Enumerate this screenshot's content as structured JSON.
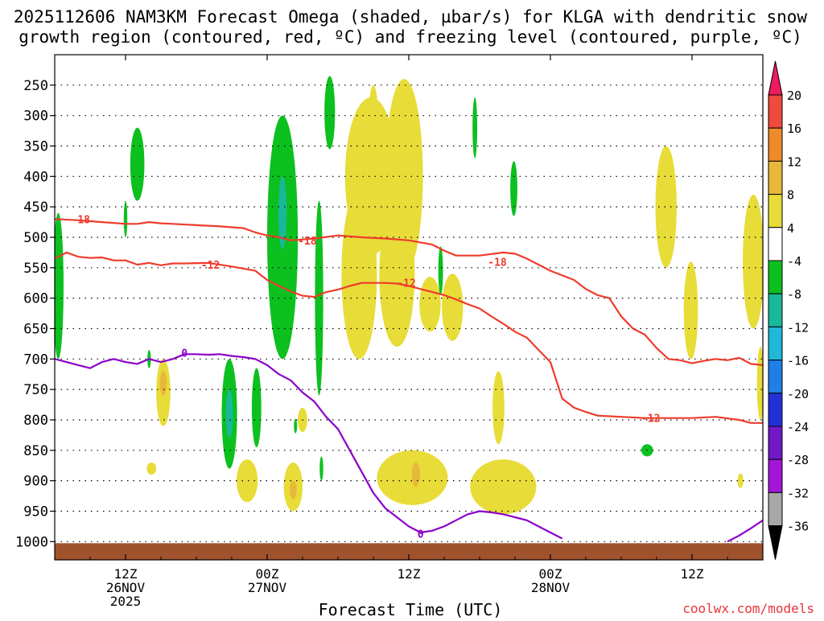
{
  "title_line1": "2025112606 NAM3KM Forecast Omega (shaded, µbar/s) for KLGA with dendritic snow",
  "title_line2": "growth region (contoured, red, ºC) and freezing level (contoured, purple, ºC)",
  "footer": {
    "xlabel": "Forecast Time (UTC)",
    "credit": "coolwx.com/models"
  },
  "colors": {
    "ground": "#a0522d",
    "dgz_contour": "#ef3b2c",
    "freezing_contour": "#8b00c8",
    "grid": "#000000"
  },
  "chart_data": {
    "type": "time-height",
    "x_axis": {
      "label": "Forecast Time (UTC)",
      "ticks": [
        {
          "hour": 6,
          "line1": "12Z",
          "line2": "26NOV",
          "line3": "2025"
        },
        {
          "hour": 18,
          "line1": "00Z",
          "line2": "27NOV",
          "line3": ""
        },
        {
          "hour": 30,
          "line1": "12Z",
          "line2": "",
          "line3": ""
        },
        {
          "hour": 42,
          "line1": "00Z",
          "line2": "28NOV",
          "line3": ""
        },
        {
          "hour": 54,
          "line1": "12Z",
          "line2": "",
          "line3": ""
        }
      ],
      "range_hours": [
        0,
        60
      ]
    },
    "y_axis": {
      "unit": "hPa",
      "ticks": [
        250,
        300,
        350,
        400,
        450,
        500,
        550,
        600,
        650,
        700,
        750,
        800,
        850,
        900,
        950,
        1000
      ],
      "range": [
        200,
        1030
      ]
    },
    "colorbar": {
      "levels": [
        "20",
        "16",
        "12",
        "8",
        "4",
        "-4",
        "-8",
        "-12",
        "-16",
        "-20",
        "-24",
        "-28",
        "-32",
        "-36"
      ],
      "colors": [
        "#ee1b5f",
        "#f04a3c",
        "#ee8a2a",
        "#e8b83a",
        "#e8dc38",
        "#ffffff",
        "#0cc01f",
        "#18b89a",
        "#20b8d6",
        "#1f7fe6",
        "#2330d8",
        "#7218c8",
        "#a315d8",
        "#a8a8a8",
        "#000000"
      ]
    },
    "contours": [
      {
        "name": "-18",
        "label_positions": [
          [
            2.2,
            470
          ],
          [
            21.4,
            505
          ],
          [
            37.5,
            540
          ]
        ],
        "points": [
          [
            0,
            470
          ],
          [
            2,
            472
          ],
          [
            4,
            475
          ],
          [
            6,
            478
          ],
          [
            7,
            478
          ],
          [
            8,
            475
          ],
          [
            9,
            477
          ],
          [
            10,
            478
          ],
          [
            12,
            480
          ],
          [
            14,
            482
          ],
          [
            16,
            485
          ],
          [
            17,
            492
          ],
          [
            18,
            497
          ],
          [
            19,
            500
          ],
          [
            20,
            505
          ],
          [
            22,
            502
          ],
          [
            24,
            497
          ],
          [
            26,
            500
          ],
          [
            28,
            502
          ],
          [
            30,
            505
          ],
          [
            32,
            512
          ],
          [
            33,
            522
          ],
          [
            34,
            530
          ],
          [
            36,
            530
          ],
          [
            38,
            525
          ],
          [
            39,
            527
          ],
          [
            40,
            535
          ],
          [
            42,
            555
          ],
          [
            44,
            570
          ],
          [
            45,
            585
          ],
          [
            46,
            595
          ],
          [
            47,
            600
          ],
          [
            48,
            630
          ],
          [
            49,
            650
          ],
          [
            50,
            660
          ],
          [
            51,
            682
          ],
          [
            52,
            700
          ],
          [
            53,
            702
          ],
          [
            54,
            707
          ],
          [
            55,
            703
          ],
          [
            56,
            700
          ],
          [
            57,
            702
          ],
          [
            58,
            698
          ],
          [
            59,
            708
          ],
          [
            60,
            710
          ]
        ]
      },
      {
        "name": "-12",
        "label_positions": [
          [
            13.2,
            545
          ],
          [
            29.8,
            575
          ],
          [
            50.5,
            797
          ]
        ],
        "points": [
          [
            0,
            535
          ],
          [
            1,
            525
          ],
          [
            2,
            532
          ],
          [
            3,
            534
          ],
          [
            4,
            533
          ],
          [
            5,
            538
          ],
          [
            6,
            538
          ],
          [
            7,
            545
          ],
          [
            8,
            542
          ],
          [
            9,
            546
          ],
          [
            10,
            543
          ],
          [
            11,
            543
          ],
          [
            13,
            542
          ],
          [
            15,
            548
          ],
          [
            17,
            555
          ],
          [
            18,
            570
          ],
          [
            19,
            580
          ],
          [
            20,
            589
          ],
          [
            21,
            596
          ],
          [
            22,
            598
          ],
          [
            23,
            590
          ],
          [
            24,
            586
          ],
          [
            25,
            580
          ],
          [
            26,
            575
          ],
          [
            27,
            575
          ],
          [
            28,
            575
          ],
          [
            29,
            576
          ],
          [
            30,
            580
          ],
          [
            31,
            585
          ],
          [
            32,
            590
          ],
          [
            33,
            595
          ],
          [
            34,
            602
          ],
          [
            35,
            610
          ],
          [
            36,
            617
          ],
          [
            37,
            630
          ],
          [
            38,
            642
          ],
          [
            39,
            655
          ],
          [
            40,
            665
          ],
          [
            41,
            685
          ],
          [
            42,
            705
          ],
          [
            43,
            765
          ],
          [
            44,
            780
          ],
          [
            45,
            787
          ],
          [
            46,
            793
          ],
          [
            48,
            795
          ],
          [
            50,
            797
          ],
          [
            52,
            797
          ],
          [
            54,
            797
          ],
          [
            56,
            795
          ],
          [
            58,
            800
          ],
          [
            59,
            805
          ],
          [
            60,
            805
          ]
        ]
      }
    ],
    "freezing_level": {
      "name": "0",
      "label_positions": [
        [
          11.0,
          690
        ],
        [
          31.0,
          987
        ]
      ],
      "segments": [
        [
          [
            0,
            700
          ],
          [
            1,
            705
          ],
          [
            2,
            710
          ],
          [
            3,
            715
          ],
          [
            4,
            705
          ],
          [
            5,
            700
          ],
          [
            6,
            705
          ],
          [
            7,
            708
          ],
          [
            8,
            700
          ],
          [
            9,
            705
          ],
          [
            10,
            700
          ],
          [
            11,
            692
          ],
          [
            12,
            692
          ],
          [
            13,
            693
          ],
          [
            14,
            692
          ],
          [
            15,
            695
          ],
          [
            16,
            697
          ],
          [
            17,
            700
          ],
          [
            18,
            710
          ],
          [
            19,
            725
          ],
          [
            20,
            735
          ],
          [
            21,
            755
          ],
          [
            22,
            770
          ],
          [
            23,
            795
          ],
          [
            24,
            815
          ],
          [
            25,
            850
          ],
          [
            26,
            885
          ],
          [
            27,
            920
          ],
          [
            28,
            945
          ],
          [
            29,
            960
          ],
          [
            30,
            975
          ],
          [
            31,
            985
          ],
          [
            32,
            982
          ],
          [
            33,
            975
          ],
          [
            34,
            965
          ],
          [
            35,
            955
          ],
          [
            36,
            950
          ],
          [
            37,
            952
          ],
          [
            38,
            955
          ],
          [
            39,
            960
          ],
          [
            40,
            965
          ],
          [
            41,
            975
          ],
          [
            42,
            985
          ],
          [
            43,
            995
          ]
        ],
        [
          [
            57,
            1000
          ],
          [
            58,
            990
          ],
          [
            59,
            978
          ],
          [
            60,
            965
          ]
        ]
      ]
    },
    "omega_regions": [
      {
        "color": "#e8dc38",
        "cx": 9.2,
        "cy": 755,
        "rx": 0.6,
        "ry": 55
      },
      {
        "color": "#e8b83a",
        "cx": 9.2,
        "cy": 740,
        "rx": 0.3,
        "ry": 20
      },
      {
        "color": "#e8dc38",
        "cx": 8.2,
        "cy": 880,
        "rx": 0.4,
        "ry": 10
      },
      {
        "color": "#e8dc38",
        "cx": 16.3,
        "cy": 900,
        "rx": 0.9,
        "ry": 35
      },
      {
        "color": "#e8dc38",
        "cx": 20.2,
        "cy": 910,
        "rx": 0.8,
        "ry": 40
      },
      {
        "color": "#e8b83a",
        "cx": 20.2,
        "cy": 915,
        "rx": 0.3,
        "ry": 15
      },
      {
        "color": "#e8dc38",
        "cx": 21.0,
        "cy": 800,
        "rx": 0.4,
        "ry": 20
      },
      {
        "color": "#e8dc38",
        "cx": 26.8,
        "cy": 400,
        "rx": 2.2,
        "ry": 130
      },
      {
        "color": "#e8dc38",
        "cx": 25.8,
        "cy": 560,
        "rx": 1.5,
        "ry": 140
      },
      {
        "color": "#e8dc38",
        "cx": 27.0,
        "cy": 340,
        "rx": 0.5,
        "ry": 90
      },
      {
        "color": "#e8dc38",
        "cx": 29.6,
        "cy": 400,
        "rx": 1.6,
        "ry": 160
      },
      {
        "color": "#e8dc38",
        "cx": 29.0,
        "cy": 560,
        "rx": 1.5,
        "ry": 120
      },
      {
        "color": "#e8dc38",
        "cx": 31.8,
        "cy": 610,
        "rx": 0.9,
        "ry": 45
      },
      {
        "color": "#e8dc38",
        "cx": 33.7,
        "cy": 615,
        "rx": 0.9,
        "ry": 55
      },
      {
        "color": "#e8dc38",
        "cx": 30.3,
        "cy": 895,
        "rx": 3.0,
        "ry": 45
      },
      {
        "color": "#e8b83a",
        "cx": 30.6,
        "cy": 890,
        "rx": 0.35,
        "ry": 20
      },
      {
        "color": "#e8dc38",
        "cx": 38.0,
        "cy": 910,
        "rx": 2.8,
        "ry": 45
      },
      {
        "color": "#e8dc38",
        "cx": 37.6,
        "cy": 780,
        "rx": 0.5,
        "ry": 60
      },
      {
        "color": "#e8dc38",
        "cx": 51.8,
        "cy": 450,
        "rx": 0.9,
        "ry": 100
      },
      {
        "color": "#e8dc38",
        "cx": 53.9,
        "cy": 620,
        "rx": 0.6,
        "ry": 80
      },
      {
        "color": "#e8dc38",
        "cx": 59.2,
        "cy": 540,
        "rx": 0.9,
        "ry": 110
      },
      {
        "color": "#e8dc38",
        "cx": 59.8,
        "cy": 740,
        "rx": 0.3,
        "ry": 60
      },
      {
        "color": "#e8dc38",
        "cx": 58.1,
        "cy": 900,
        "rx": 0.25,
        "ry": 12
      },
      {
        "color": "#0cc01f",
        "cx": 0.3,
        "cy": 580,
        "rx": 0.45,
        "ry": 120
      },
      {
        "color": "#0cc01f",
        "cx": 7.0,
        "cy": 380,
        "rx": 0.6,
        "ry": 60
      },
      {
        "color": "#0cc01f",
        "cx": 6.0,
        "cy": 470,
        "rx": 0.15,
        "ry": 30
      },
      {
        "color": "#0cc01f",
        "cx": 8.0,
        "cy": 700,
        "rx": 0.15,
        "ry": 15
      },
      {
        "color": "#0cc01f",
        "cx": 14.8,
        "cy": 790,
        "rx": 0.65,
        "ry": 90
      },
      {
        "color": "#18b89a",
        "cx": 14.8,
        "cy": 790,
        "rx": 0.3,
        "ry": 40
      },
      {
        "color": "#0cc01f",
        "cx": 17.1,
        "cy": 780,
        "rx": 0.4,
        "ry": 65
      },
      {
        "color": "#0cc01f",
        "cx": 19.3,
        "cy": 500,
        "rx": 1.3,
        "ry": 200
      },
      {
        "color": "#18b89a",
        "cx": 19.3,
        "cy": 460,
        "rx": 0.35,
        "ry": 60
      },
      {
        "color": "#0cc01f",
        "cx": 22.4,
        "cy": 600,
        "rx": 0.35,
        "ry": 160
      },
      {
        "color": "#0cc01f",
        "cx": 22.6,
        "cy": 880,
        "rx": 0.15,
        "ry": 20
      },
      {
        "color": "#0cc01f",
        "cx": 23.3,
        "cy": 295,
        "rx": 0.45,
        "ry": 60
      },
      {
        "color": "#0cc01f",
        "cx": 32.7,
        "cy": 555,
        "rx": 0.2,
        "ry": 40
      },
      {
        "color": "#0cc01f",
        "cx": 35.6,
        "cy": 320,
        "rx": 0.2,
        "ry": 50
      },
      {
        "color": "#0cc01f",
        "cx": 38.9,
        "cy": 420,
        "rx": 0.3,
        "ry": 45
      },
      {
        "color": "#0cc01f",
        "cx": 50.2,
        "cy": 850,
        "rx": 0.5,
        "ry": 10
      },
      {
        "color": "#0cc01f",
        "cx": 20.4,
        "cy": 810,
        "rx": 0.1,
        "ry": 12
      }
    ]
  }
}
